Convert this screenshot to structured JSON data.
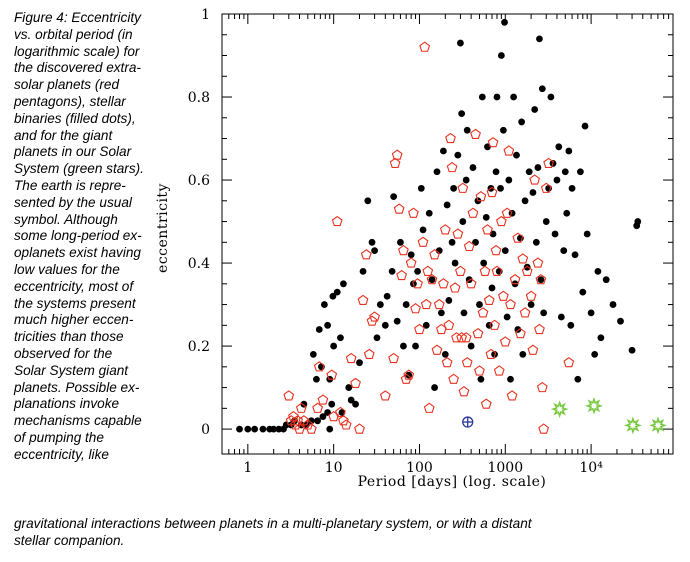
{
  "caption": {
    "side_lines": [
      "Figure 4: Eccentricity",
      "vs. orbital period (in",
      "logarithmic scale) for",
      "the discovered extra-",
      "solar planets (red",
      "pentagons), stellar",
      "binaries (filled dots),",
      "and for the giant",
      "planets in our Solar",
      "System (green stars).",
      "The earth is  repre-",
      "sented  by the usual",
      "symbol. Although",
      "some long-period ex-",
      "oplanets exist having",
      "low values for the",
      "eccentricity, most of",
      "the systems present",
      "much higher eccen-",
      "tricities than those",
      "observed for the",
      "Solar System giant",
      "planets. Possible ex-",
      "planations invoke",
      "mechanisms capable",
      "of pumping the",
      "eccentricity, like"
    ],
    "bottom_lines": [
      "gravitational interactions between planets in a multi-planetary system, or with a distant",
      "stellar companion."
    ]
  },
  "chart_data": {
    "type": "scatter",
    "title": "",
    "xlabel": "Period [days] (log. scale)",
    "ylabel": "eccentricity",
    "x_scale": "log",
    "xlim": [
      0.5,
      90000
    ],
    "ylim": [
      -0.06,
      1.0
    ],
    "x_ticks": [
      1,
      10,
      100,
      1000,
      10000
    ],
    "x_tick_labels": [
      "1",
      "10",
      "100",
      "1000",
      "10⁴"
    ],
    "y_ticks": [
      0,
      0.2,
      0.4,
      0.6,
      0.8,
      1
    ],
    "y_tick_labels": [
      "0",
      "0.2",
      "0.4",
      "0.6",
      "0.8",
      "1"
    ],
    "colors": {
      "planets": "#e8321f",
      "binaries": "#000000",
      "solar": "#7ac943",
      "earth": "#2b3a9c"
    },
    "series": [
      {
        "marker": "filled-dot",
        "points": [
          [
            0.8,
            0
          ],
          [
            1.0,
            0
          ],
          [
            1.2,
            0
          ],
          [
            1.5,
            0
          ],
          [
            1.8,
            0
          ],
          [
            2.0,
            0
          ],
          [
            2.3,
            0
          ],
          [
            2.6,
            0
          ],
          [
            2.8,
            0.01
          ],
          [
            3.2,
            0.01
          ],
          [
            3.5,
            0.02
          ],
          [
            4.2,
            0.01
          ],
          [
            4.8,
            0.01
          ],
          [
            5.5,
            0.02
          ],
          [
            6.5,
            0.02
          ],
          [
            7.5,
            0.03
          ],
          [
            8.5,
            0.04
          ],
          [
            9.0,
            0.0
          ],
          [
            9.5,
            0.06
          ],
          [
            4.5,
            0.06
          ],
          [
            5.8,
            0.18
          ],
          [
            6.3,
            0.12
          ],
          [
            6.8,
            0.24
          ],
          [
            7.2,
            0.15
          ],
          [
            7.8,
            0.3
          ],
          [
            8.5,
            0.25
          ],
          [
            9.0,
            0.12
          ],
          [
            9.8,
            0.32
          ],
          [
            10,
            0.2
          ],
          [
            11,
            0.33
          ],
          [
            12,
            0.22
          ],
          [
            12.5,
            0.04
          ],
          [
            13,
            0.35
          ],
          [
            15,
            0.1
          ],
          [
            16,
            0.07
          ],
          [
            18,
            0.06
          ],
          [
            20,
            0.16
          ],
          [
            22,
            0.38
          ],
          [
            25,
            0.55
          ],
          [
            28,
            0.45
          ],
          [
            30,
            0.43
          ],
          [
            32,
            0.22
          ],
          [
            35,
            0.3
          ],
          [
            40,
            0.25
          ],
          [
            42,
            0.32
          ],
          [
            48,
            0.38
          ],
          [
            50,
            0.56
          ],
          [
            55,
            0.26
          ],
          [
            60,
            0.45
          ],
          [
            65,
            0.2
          ],
          [
            70,
            0.3
          ],
          [
            75,
            0.13
          ],
          [
            80,
            0.42
          ],
          [
            85,
            0.35
          ],
          [
            90,
            0.2
          ],
          [
            95,
            0.38
          ],
          [
            105,
            0.58
          ],
          [
            110,
            0.48
          ],
          [
            120,
            0.25
          ],
          [
            130,
            0.52
          ],
          [
            140,
            0.36
          ],
          [
            150,
            0.1
          ],
          [
            160,
            0.62
          ],
          [
            170,
            0.43
          ],
          [
            180,
            0.28
          ],
          [
            190,
            0.67
          ],
          [
            200,
            0.18
          ],
          [
            210,
            0.54
          ],
          [
            220,
            0.31
          ],
          [
            240,
            0.45
          ],
          [
            250,
            0.58
          ],
          [
            260,
            0.4
          ],
          [
            280,
            0.66
          ],
          [
            300,
            0.93
          ],
          [
            310,
            0.76
          ],
          [
            320,
            0.5
          ],
          [
            330,
            0.28
          ],
          [
            350,
            0.6
          ],
          [
            360,
            0.72
          ],
          [
            380,
            0.36
          ],
          [
            400,
            0.2
          ],
          [
            420,
            0.63
          ],
          [
            450,
            0.45
          ],
          [
            480,
            0.55
          ],
          [
            500,
            0.3
          ],
          [
            520,
            0.12
          ],
          [
            540,
            0.8
          ],
          [
            560,
            0.4
          ],
          [
            600,
            0.51
          ],
          [
            620,
            0.68
          ],
          [
            650,
            0.25
          ],
          [
            680,
            0.58
          ],
          [
            700,
            0.34
          ],
          [
            720,
            0.47
          ],
          [
            750,
            0.18
          ],
          [
            780,
            0.62
          ],
          [
            800,
            0.8
          ],
          [
            850,
            0.38
          ],
          [
            880,
            0.58
          ],
          [
            900,
            0.9
          ],
          [
            950,
            0.72
          ],
          [
            980,
            0.98
          ],
          [
            1000,
            0.43
          ],
          [
            1050,
            0.27
          ],
          [
            1100,
            0.6
          ],
          [
            1150,
            0.12
          ],
          [
            1200,
            0.52
          ],
          [
            1250,
            0.8
          ],
          [
            1300,
            0.35
          ],
          [
            1350,
            0.66
          ],
          [
            1400,
            0.24
          ],
          [
            1500,
            0.46
          ],
          [
            1550,
            0.74
          ],
          [
            1600,
            0.18
          ],
          [
            1700,
            0.55
          ],
          [
            1800,
            0.39
          ],
          [
            1900,
            0.62
          ],
          [
            2000,
            0.3
          ],
          [
            2100,
            0.57
          ],
          [
            2200,
            0.77
          ],
          [
            2300,
            0.45
          ],
          [
            2400,
            0.63
          ],
          [
            2500,
            0.94
          ],
          [
            2600,
            0.36
          ],
          [
            2700,
            0.82
          ],
          [
            2800,
            0.28
          ],
          [
            3000,
            0.5
          ],
          [
            3200,
            0.58
          ],
          [
            3400,
            0.8
          ],
          [
            3600,
            0.64
          ],
          [
            3800,
            0.47
          ],
          [
            4000,
            0.6
          ],
          [
            4200,
            0.68
          ],
          [
            4500,
            0.27
          ],
          [
            4800,
            0.43
          ],
          [
            5000,
            0.62
          ],
          [
            5200,
            0.52
          ],
          [
            5500,
            0.67
          ],
          [
            5800,
            0.25
          ],
          [
            6000,
            0.58
          ],
          [
            6500,
            0.42
          ],
          [
            7000,
            0.12
          ],
          [
            7500,
            0.62
          ],
          [
            8000,
            0.33
          ],
          [
            8500,
            0.73
          ],
          [
            9000,
            0.47
          ],
          [
            10000,
            0.28
          ],
          [
            11000,
            0.18
          ],
          [
            12000,
            0.38
          ],
          [
            13000,
            0.22
          ],
          [
            15000,
            0.36
          ],
          [
            18000,
            0.3
          ],
          [
            22000,
            0.26
          ],
          [
            30000,
            0.19
          ],
          [
            34000,
            0.49
          ],
          [
            35000,
            0.5
          ]
        ]
      },
      {
        "marker": "pentagon",
        "points": [
          [
            3.0,
            0.08
          ],
          [
            3.2,
            0.02
          ],
          [
            3.4,
            0.03
          ],
          [
            3.6,
            0.01
          ],
          [
            3.8,
            0.02
          ],
          [
            4.0,
            0.0
          ],
          [
            4.2,
            0.05
          ],
          [
            4.5,
            0.02
          ],
          [
            5.0,
            0.01
          ],
          [
            5.5,
            0.0
          ],
          [
            6.5,
            0.05
          ],
          [
            6.8,
            0.15
          ],
          [
            7.5,
            0.07
          ],
          [
            9.5,
            0.13
          ],
          [
            10,
            0.03
          ],
          [
            11,
            0.5
          ],
          [
            12,
            0.04
          ],
          [
            13,
            0.02
          ],
          [
            14,
            0.01
          ],
          [
            16,
            0.17
          ],
          [
            18,
            0.11
          ],
          [
            20,
            0.0
          ],
          [
            22,
            0.31
          ],
          [
            24,
            0.42
          ],
          [
            26,
            0.18
          ],
          [
            28,
            0.26
          ],
          [
            30,
            0.27
          ],
          [
            40,
            0.08
          ],
          [
            50,
            0.17
          ],
          [
            52,
            0.64
          ],
          [
            55,
            0.66
          ],
          [
            58,
            0.53
          ],
          [
            62,
            0.37
          ],
          [
            65,
            0.43
          ],
          [
            70,
            0.12
          ],
          [
            75,
            0.13
          ],
          [
            80,
            0.4
          ],
          [
            85,
            0.52
          ],
          [
            90,
            0.29
          ],
          [
            95,
            0.35
          ],
          [
            100,
            0.24
          ],
          [
            110,
            0.45
          ],
          [
            115,
            0.92
          ],
          [
            120,
            0.3
          ],
          [
            125,
            0.38
          ],
          [
            130,
            0.05
          ],
          [
            140,
            0.36
          ],
          [
            150,
            0.42
          ],
          [
            160,
            0.19
          ],
          [
            170,
            0.3
          ],
          [
            180,
            0.24
          ],
          [
            190,
            0.35
          ],
          [
            200,
            0.48
          ],
          [
            210,
            0.16
          ],
          [
            220,
            0.25
          ],
          [
            230,
            0.7
          ],
          [
            240,
            0.63
          ],
          [
            250,
            0.12
          ],
          [
            260,
            0.34
          ],
          [
            270,
            0.22
          ],
          [
            280,
            0.47
          ],
          [
            300,
            0.38
          ],
          [
            310,
            0.22
          ],
          [
            320,
            0.58
          ],
          [
            330,
            0.09
          ],
          [
            350,
            0.22
          ],
          [
            360,
            0.16
          ],
          [
            380,
            0.44
          ],
          [
            400,
            0.35
          ],
          [
            420,
            0.52
          ],
          [
            450,
            0.71
          ],
          [
            480,
            0.23
          ],
          [
            500,
            0.14
          ],
          [
            520,
            0.56
          ],
          [
            550,
            0.28
          ],
          [
            580,
            0.38
          ],
          [
            600,
            0.06
          ],
          [
            620,
            0.48
          ],
          [
            650,
            0.31
          ],
          [
            680,
            0.18
          ],
          [
            700,
            0.57
          ],
          [
            720,
            0.69
          ],
          [
            750,
            0.25
          ],
          [
            780,
            0.43
          ],
          [
            800,
            0.38
          ],
          [
            850,
            0.14
          ],
          [
            900,
            0.5
          ],
          [
            950,
            0.32
          ],
          [
            1000,
            0.21
          ],
          [
            1050,
            0.52
          ],
          [
            1100,
            0.67
          ],
          [
            1150,
            0.3
          ],
          [
            1200,
            0.08
          ],
          [
            1300,
            0.36
          ],
          [
            1400,
            0.46
          ],
          [
            1500,
            0.23
          ],
          [
            1600,
            0.41
          ],
          [
            1700,
            0.28
          ],
          [
            1800,
            0.38
          ],
          [
            2000,
            0.32
          ],
          [
            2100,
            0.19
          ],
          [
            2200,
            0.6
          ],
          [
            2400,
            0.4
          ],
          [
            2500,
            0.24
          ],
          [
            2600,
            0.36
          ],
          [
            2700,
            0.1
          ],
          [
            2800,
            0.0
          ],
          [
            3000,
            0.58
          ],
          [
            3200,
            0.64
          ],
          [
            5500,
            0.16
          ]
        ]
      },
      {
        "marker": "star",
        "points": [
          [
            4300,
            0.048
          ],
          [
            10800,
            0.056
          ],
          [
            30700,
            0.009
          ],
          [
            60200,
            0.009
          ]
        ]
      },
      {
        "marker": "earth",
        "points": [
          [
            365,
            0.017
          ]
        ]
      }
    ]
  }
}
